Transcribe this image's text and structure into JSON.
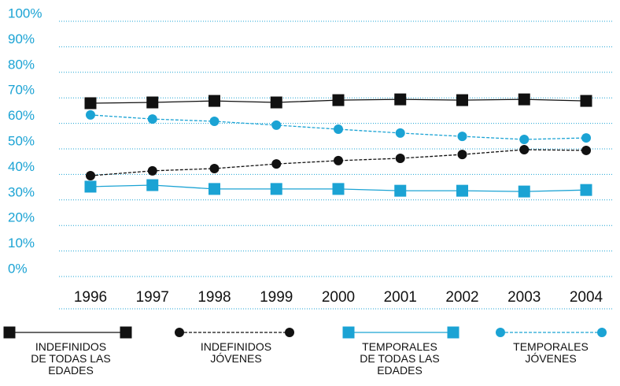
{
  "chart_data": {
    "type": "line",
    "categories": [
      "1996",
      "1997",
      "1998",
      "1999",
      "2000",
      "2001",
      "2002",
      "2003",
      "2004"
    ],
    "series": [
      {
        "name": "INDEFINIDOS\nDE TODAS LAS\nEDADES",
        "color": "#111111",
        "marker": "square",
        "dash": false,
        "values": [
          67.9,
          68.2,
          68.8,
          68.2,
          69.1,
          69.4,
          69.1,
          69.4,
          68.8
        ]
      },
      {
        "name": "INDEFINIDOS\nJÓVENES",
        "color": "#111111",
        "marker": "circle",
        "dash": true,
        "values": [
          39.5,
          41.4,
          42.3,
          44.1,
          45.4,
          46.3,
          47.8,
          49.7,
          49.4
        ]
      },
      {
        "name": "TEMPORALES\nDE TODAS LAS\nEDADES",
        "color": "#1ba3d4",
        "marker": "square",
        "dash": false,
        "values": [
          35.2,
          35.8,
          34.3,
          34.3,
          34.3,
          33.6,
          33.6,
          33.3,
          33.9
        ]
      },
      {
        "name": "TEMPORALES\nJÓVENES",
        "color": "#1ba3d4",
        "marker": "circle",
        "dash": true,
        "values": [
          63.3,
          61.7,
          60.8,
          59.3,
          57.7,
          56.2,
          54.9,
          53.7,
          54.3
        ]
      }
    ],
    "ylim": [
      0,
      100
    ],
    "yticks": [
      {
        "value": 0,
        "label": "0%"
      },
      {
        "value": 10,
        "label": "10%"
      },
      {
        "value": 20,
        "label": "20%"
      },
      {
        "value": 30,
        "label": "30%"
      },
      {
        "value": 40,
        "label": "40%"
      },
      {
        "value": 50,
        "label": "50%"
      },
      {
        "value": 60,
        "label": "60%"
      },
      {
        "value": 70,
        "label": "70%"
      },
      {
        "value": 80,
        "label": "80%"
      },
      {
        "value": 90,
        "label": "90%"
      },
      {
        "value": 100,
        "label": "100%"
      }
    ],
    "grid": true
  }
}
